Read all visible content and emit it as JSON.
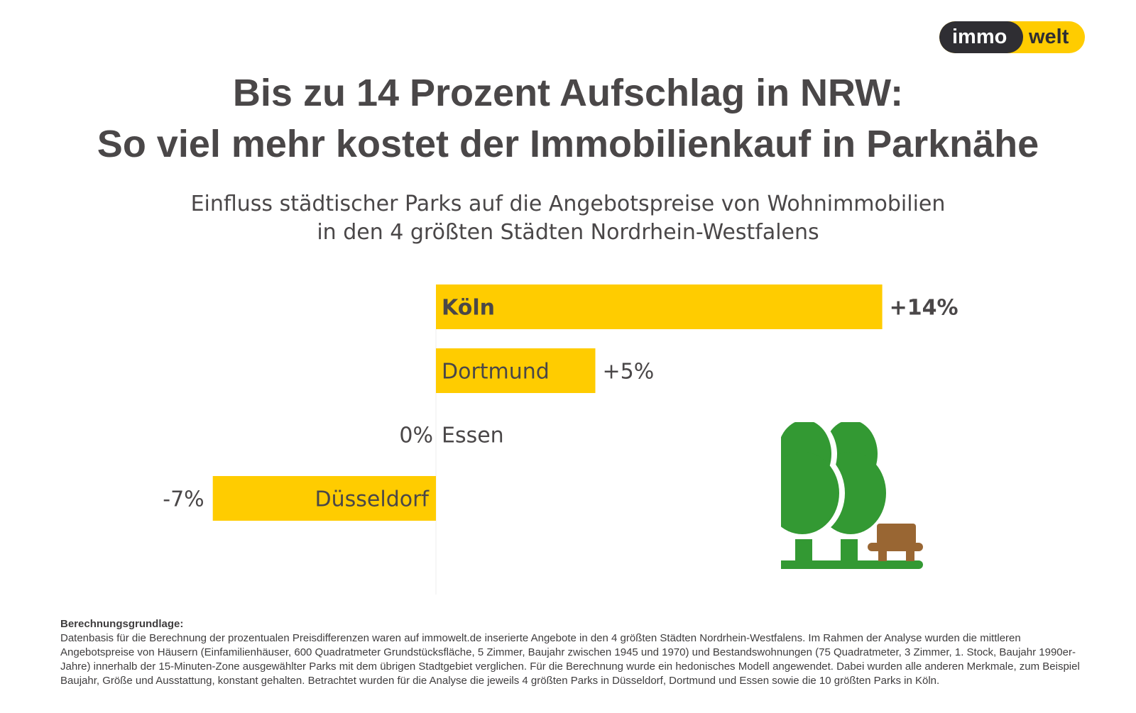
{
  "logo": {
    "part1": "immo",
    "part2": "welt"
  },
  "title": {
    "line1": "Bis zu 14 Prozent Aufschlag in NRW:",
    "line2": "So viel mehr kostet der Immobilienkauf in Parknähe"
  },
  "subtitle": {
    "line1": "Einfluss städtischer Parks auf die Angebotspreise von Wohnimmobilien",
    "line2": "in den 4 größten Städten Nordrhein-Westfalens"
  },
  "chart_data": {
    "type": "bar",
    "orientation": "horizontal",
    "categories": [
      "Köln",
      "Dortmund",
      "Essen",
      "Düsseldorf"
    ],
    "values": [
      14,
      5,
      0,
      -7
    ],
    "labels": [
      "+14%",
      "+5%",
      "0%",
      "-7%"
    ],
    "unit": "%",
    "xlim": [
      -7,
      14
    ],
    "bar_color": "#ffcc00",
    "highlight": "Köln"
  },
  "footnote": {
    "heading": "Berechnungsgrundlage:",
    "text": "Datenbasis für die Berechnung der prozentualen Preisdifferenzen waren auf immowelt.de inserierte Angebote in den 4 größten Städten Nordrhein-Westfalens. Im Rahmen der Analyse wurden die mittleren Angebotspreise von Häusern (Einfamilienhäuser, 600 Quadratmeter Grundstücksfläche, 5 Zimmer, Baujahr zwischen 1945 und 1970) und Bestandswohnungen (75 Quadratmeter, 3 Zimmer, 1. Stock, Baujahr 1990er-Jahre) innerhalb der 15-Minuten-Zone ausgewählter Parks mit dem übrigen Stadtgebiet verglichen. Für die Berechnung wurde ein hedonisches Modell angewendet. Dabei wurden alle anderen Merkmale, zum Beispiel Baujahr, Größe und Ausstattung, konstant gehalten. Betrachtet wurden für die Analyse die jeweils 4 größten Parks in Düsseldorf, Dortmund und Essen sowie die 10 größten Parks in Köln."
  }
}
